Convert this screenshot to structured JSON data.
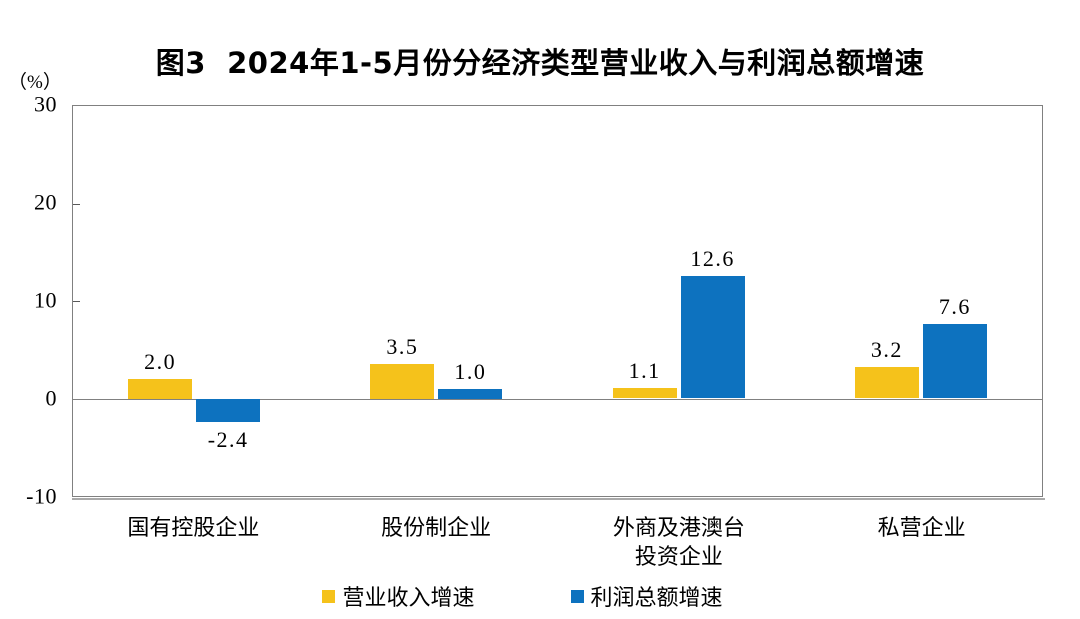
{
  "chart_data": {
    "type": "bar",
    "title": "图3  2024年1-5月份分经济类型营业收入与利润总额增速",
    "unit_label": "（%）",
    "categories": [
      "国有控股企业",
      "股份制企业",
      "外商及港澳台投资企业",
      "私营企业"
    ],
    "category_label_lines": [
      [
        "国有控股企业"
      ],
      [
        "股份制企业"
      ],
      [
        "外商及港澳台",
        "投资企业"
      ],
      [
        "私营企业"
      ]
    ],
    "series": [
      {
        "name": "营业收入增速",
        "color": "#F5C21B",
        "values": [
          2.0,
          3.5,
          1.1,
          3.2
        ]
      },
      {
        "name": "利润总额增速",
        "color": "#0D72BF",
        "values": [
          -2.4,
          1.0,
          12.6,
          7.6
        ]
      }
    ],
    "value_labels": [
      [
        "2.0",
        "3.5",
        "1.1",
        "3.2"
      ],
      [
        "-2.4",
        "1.0",
        "12.6",
        "7.6"
      ]
    ],
    "ylim": [
      -10,
      30
    ],
    "yticks": [
      30,
      20,
      10,
      0,
      -10
    ],
    "axis_color": "#808080",
    "text_color": "#000000",
    "grid": false,
    "legend_position": "bottom"
  }
}
